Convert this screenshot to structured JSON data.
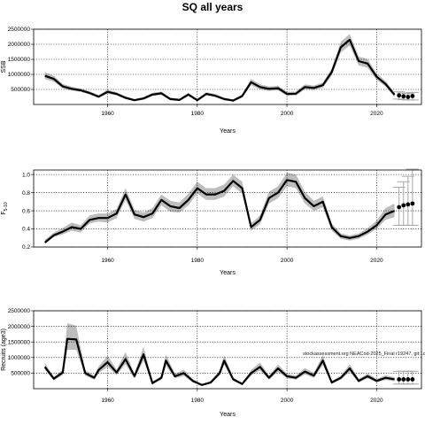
{
  "title": "SQ all years",
  "colors": {
    "band": "#bdbdbd",
    "line": "#000000",
    "grid": "#000000",
    "errorbar": "#a8a8a8"
  },
  "chart_data": [
    {
      "type": "line",
      "xlabel": "Years",
      "ylabel": "SSB",
      "xlim": [
        1943.5,
        2030
      ],
      "ylim": [
        0,
        2500000
      ],
      "grid": true,
      "xticks": [
        1960,
        1980,
        2000,
        2020
      ],
      "yticks": [
        500000,
        1000000,
        1500000,
        2000000,
        2500000
      ],
      "ytick_labels": [
        "500000",
        "1000000",
        "1500000",
        "2000000",
        "2500000"
      ],
      "x": [
        1946,
        1948,
        1950,
        1952,
        1954,
        1956,
        1958,
        1960,
        1962,
        1964,
        1966,
        1968,
        1970,
        1972,
        1974,
        1976,
        1978,
        1980,
        1982,
        1984,
        1986,
        1988,
        1990,
        1992,
        1994,
        1996,
        1998,
        2000,
        2002,
        2004,
        2006,
        2008,
        2010,
        2012,
        2014,
        2016,
        2018,
        2020,
        2022,
        2024
      ],
      "values": [
        950000,
        850000,
        600000,
        520000,
        470000,
        380000,
        260000,
        420000,
        350000,
        220000,
        140000,
        200000,
        330000,
        370000,
        180000,
        150000,
        330000,
        140000,
        350000,
        290000,
        180000,
        130000,
        280000,
        740000,
        580000,
        520000,
        540000,
        350000,
        360000,
        580000,
        550000,
        640000,
        1080000,
        1900000,
        2150000,
        1440000,
        1360000,
        920000,
        680000,
        320000
      ],
      "band_lower": [
        840000,
        760000,
        530000,
        460000,
        420000,
        330000,
        220000,
        360000,
        300000,
        180000,
        110000,
        160000,
        280000,
        320000,
        140000,
        120000,
        280000,
        110000,
        300000,
        240000,
        140000,
        100000,
        230000,
        640000,
        500000,
        450000,
        470000,
        290000,
        300000,
        500000,
        480000,
        560000,
        960000,
        1730000,
        1960000,
        1300000,
        1220000,
        820000,
        590000,
        250000
      ],
      "band_upper": [
        1070000,
        950000,
        680000,
        590000,
        530000,
        440000,
        310000,
        490000,
        410000,
        270000,
        180000,
        250000,
        390000,
        430000,
        230000,
        190000,
        390000,
        180000,
        410000,
        350000,
        230000,
        170000,
        340000,
        850000,
        670000,
        600000,
        620000,
        420000,
        430000,
        670000,
        630000,
        730000,
        1200000,
        2080000,
        2340000,
        1590000,
        1510000,
        1030000,
        780000,
        400000
      ],
      "projection": {
        "x": [
          2025,
          2026,
          2027,
          2028
        ],
        "values": [
          300000,
          270000,
          250000,
          280000
        ],
        "lower": [
          180000,
          160000,
          150000,
          150000
        ],
        "upper": [
          420000,
          380000,
          360000,
          400000
        ]
      }
    },
    {
      "type": "line",
      "xlabel": "Years",
      "ylabel": "F5-10",
      "ylabel_main": "F",
      "ylabel_sub": "5-10",
      "xlim": [
        1943.5,
        2030
      ],
      "ylim": [
        0.2,
        1.05
      ],
      "grid": true,
      "xticks": [
        1960,
        1980,
        2000,
        2020
      ],
      "yticks": [
        0.2,
        0.4,
        0.6,
        0.8,
        1.0
      ],
      "ytick_labels": [
        "0.2",
        "0.4",
        "0.6",
        "0.8",
        "1.0"
      ],
      "x": [
        1946,
        1948,
        1950,
        1952,
        1954,
        1956,
        1958,
        1960,
        1962,
        1964,
        1966,
        1968,
        1970,
        1972,
        1974,
        1976,
        1978,
        1980,
        1982,
        1984,
        1986,
        1988,
        1990,
        1992,
        1994,
        1996,
        1998,
        2000,
        2002,
        2004,
        2006,
        2008,
        2010,
        2012,
        2014,
        2016,
        2018,
        2020,
        2022,
        2024
      ],
      "values": [
        0.25,
        0.33,
        0.37,
        0.42,
        0.4,
        0.5,
        0.52,
        0.52,
        0.57,
        0.78,
        0.56,
        0.53,
        0.57,
        0.72,
        0.65,
        0.63,
        0.72,
        0.85,
        0.78,
        0.78,
        0.82,
        0.93,
        0.85,
        0.42,
        0.5,
        0.74,
        0.8,
        0.94,
        0.92,
        0.74,
        0.65,
        0.7,
        0.42,
        0.32,
        0.3,
        0.32,
        0.37,
        0.44,
        0.56,
        0.6
      ],
      "band_lower": [
        0.23,
        0.31,
        0.34,
        0.38,
        0.36,
        0.46,
        0.48,
        0.47,
        0.52,
        0.72,
        0.51,
        0.48,
        0.52,
        0.66,
        0.59,
        0.58,
        0.66,
        0.79,
        0.72,
        0.72,
        0.76,
        0.87,
        0.79,
        0.38,
        0.45,
        0.68,
        0.74,
        0.87,
        0.85,
        0.68,
        0.6,
        0.64,
        0.38,
        0.29,
        0.27,
        0.29,
        0.34,
        0.4,
        0.5,
        0.53
      ],
      "band_upper": [
        0.28,
        0.36,
        0.41,
        0.47,
        0.44,
        0.55,
        0.57,
        0.57,
        0.62,
        0.85,
        0.61,
        0.58,
        0.63,
        0.78,
        0.71,
        0.69,
        0.79,
        0.92,
        0.85,
        0.85,
        0.89,
        1.0,
        0.92,
        0.46,
        0.55,
        0.81,
        0.87,
        1.02,
        1.0,
        0.81,
        0.71,
        0.76,
        0.46,
        0.35,
        0.33,
        0.35,
        0.41,
        0.49,
        0.63,
        0.68
      ],
      "projection": {
        "x": [
          2025,
          2026,
          2027,
          2028
        ],
        "values": [
          0.64,
          0.66,
          0.67,
          0.68
        ],
        "lower": [
          0.44,
          0.44,
          0.44,
          0.44
        ],
        "upper": [
          0.86,
          0.92,
          0.98,
          1.06
        ]
      }
    },
    {
      "type": "line",
      "xlabel": "Years",
      "ylabel": "Recruits (age3)",
      "annotation": "stockassessment.org NEACod-2025_Final r19247, git:1c",
      "xlim": [
        1943.5,
        2030
      ],
      "ylim": [
        0,
        2500000
      ],
      "grid": true,
      "xticks": [
        1960,
        1980,
        2000,
        2020
      ],
      "yticks": [
        500000,
        1000000,
        1500000,
        2000000,
        2500000
      ],
      "ytick_labels": [
        "500000",
        "1000000",
        "1500000",
        "2000000",
        "2500000"
      ],
      "x": [
        1946,
        1948,
        1950,
        1951,
        1953,
        1955,
        1957,
        1958,
        1960,
        1962,
        1964,
        1966,
        1968,
        1970,
        1972,
        1973,
        1975,
        1977,
        1979,
        1981,
        1983,
        1985,
        1986,
        1988,
        1990,
        1992,
        1994,
        1996,
        1998,
        2000,
        2002,
        2004,
        2006,
        2008,
        2010,
        2012,
        2014,
        2016,
        2018,
        2020,
        2022,
        2024
      ],
      "values": [
        700000,
        320000,
        520000,
        1600000,
        1580000,
        500000,
        350000,
        600000,
        850000,
        520000,
        950000,
        400000,
        1100000,
        180000,
        350000,
        900000,
        400000,
        500000,
        250000,
        120000,
        200000,
        500000,
        900000,
        300000,
        150000,
        500000,
        700000,
        350000,
        650000,
        400000,
        350000,
        550000,
        420000,
        900000,
        200000,
        350000,
        650000,
        250000,
        400000,
        250000,
        350000,
        300000
      ],
      "band_lower": [
        600000,
        270000,
        440000,
        1250000,
        1250000,
        420000,
        290000,
        500000,
        700000,
        440000,
        780000,
        330000,
        900000,
        150000,
        290000,
        740000,
        330000,
        410000,
        200000,
        100000,
        160000,
        420000,
        760000,
        250000,
        120000,
        420000,
        590000,
        290000,
        540000,
        330000,
        290000,
        460000,
        350000,
        760000,
        160000,
        290000,
        540000,
        200000,
        330000,
        200000,
        280000,
        240000
      ],
      "band_upper": [
        830000,
        380000,
        620000,
        2100000,
        2020000,
        600000,
        420000,
        720000,
        1060000,
        620000,
        1170000,
        480000,
        1350000,
        220000,
        420000,
        1100000,
        480000,
        610000,
        310000,
        150000,
        250000,
        600000,
        1080000,
        360000,
        190000,
        600000,
        840000,
        420000,
        780000,
        480000,
        420000,
        660000,
        510000,
        1080000,
        250000,
        420000,
        790000,
        310000,
        490000,
        310000,
        430000,
        370000
      ],
      "projection": {
        "x": [
          2025,
          2026,
          2027,
          2028
        ],
        "values": [
          300000,
          300000,
          300000,
          300000
        ],
        "lower": [
          150000,
          150000,
          150000,
          150000
        ],
        "upper": [
          560000,
          560000,
          560000,
          560000
        ]
      }
    }
  ]
}
